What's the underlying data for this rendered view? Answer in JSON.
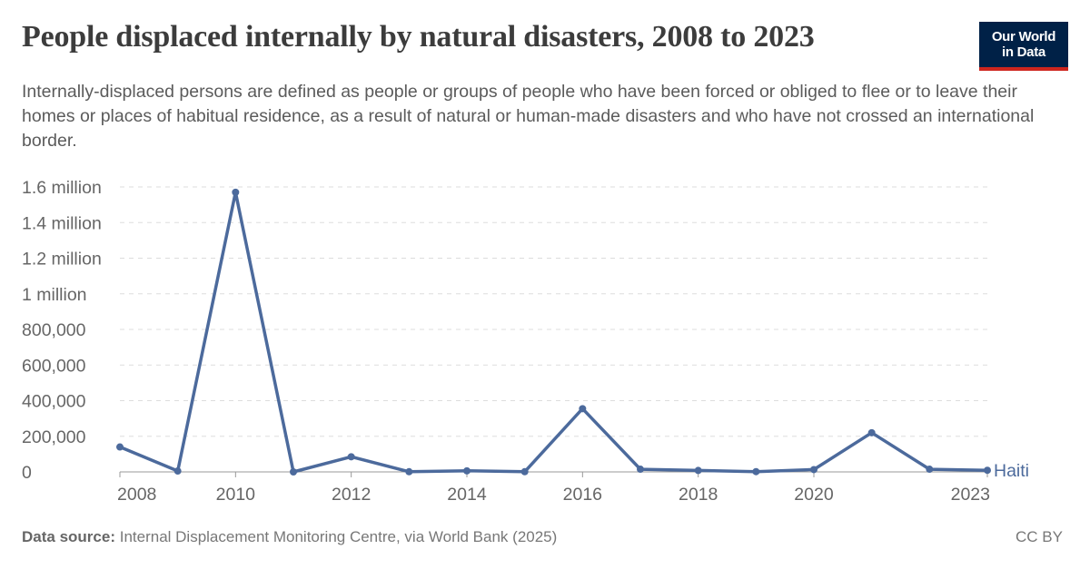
{
  "header": {
    "title": "People displaced internally by natural disasters, 2008 to 2023",
    "subtitle": "Internally-displaced persons are defined as people or groups of people who have been forced or obliged to flee or to leave their homes or places of habitual residence, as a result of natural or human-made disasters and who have not crossed an international border."
  },
  "logo": {
    "line1": "Our World",
    "line2": "in Data",
    "bg_color": "#002147",
    "accent_color": "#ce261e"
  },
  "footer": {
    "source_label": "Data source:",
    "source_text": "Internal Displacement Monitoring Centre, via World Bank (2025)",
    "license": "CC BY"
  },
  "chart_data": {
    "type": "line",
    "title": "People displaced internally by natural disasters, 2008 to 2023",
    "xlabel": "",
    "ylabel": "",
    "xlim": [
      2008,
      2023
    ],
    "ylim": [
      0,
      1600000
    ],
    "grid": true,
    "legend": "inline-right",
    "x_ticks": [
      {
        "value": 2008,
        "label": "2008"
      },
      {
        "value": 2010,
        "label": "2010"
      },
      {
        "value": 2012,
        "label": "2012"
      },
      {
        "value": 2014,
        "label": "2014"
      },
      {
        "value": 2016,
        "label": "2016"
      },
      {
        "value": 2018,
        "label": "2018"
      },
      {
        "value": 2020,
        "label": "2020"
      },
      {
        "value": 2023,
        "label": "2023"
      }
    ],
    "y_ticks": [
      {
        "value": 0,
        "label": "0"
      },
      {
        "value": 200000,
        "label": "200,000"
      },
      {
        "value": 400000,
        "label": "400,000"
      },
      {
        "value": 600000,
        "label": "600,000"
      },
      {
        "value": 800000,
        "label": "800,000"
      },
      {
        "value": 1000000,
        "label": "1 million"
      },
      {
        "value": 1200000,
        "label": "1.2 million"
      },
      {
        "value": 1400000,
        "label": "1.4 million"
      },
      {
        "value": 1600000,
        "label": "1.6 million"
      }
    ],
    "series": [
      {
        "name": "Haiti",
        "color": "#4c6a9c",
        "x": [
          2008,
          2009,
          2010,
          2011,
          2012,
          2013,
          2014,
          2015,
          2016,
          2017,
          2018,
          2019,
          2020,
          2021,
          2022,
          2023
        ],
        "values": [
          140000,
          5000,
          1570000,
          0,
          85000,
          1000,
          6000,
          1000,
          355000,
          15000,
          8000,
          1500,
          13000,
          220000,
          15000,
          9000
        ]
      }
    ]
  }
}
